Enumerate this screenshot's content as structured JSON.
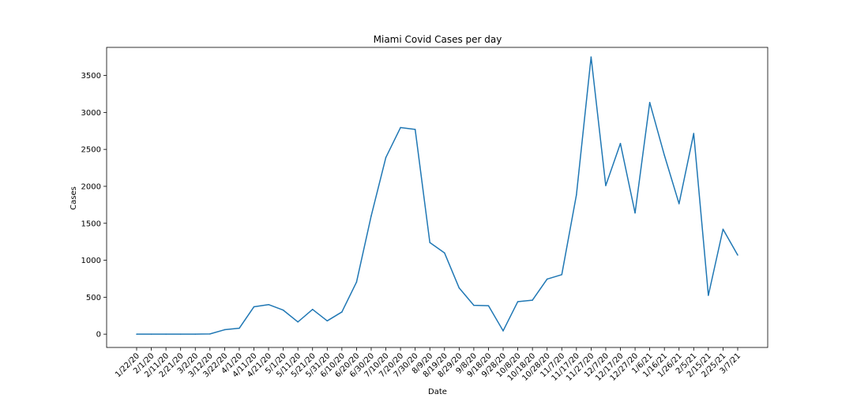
{
  "chart_data": {
    "type": "line",
    "title": "Miami Covid Cases per day",
    "xlabel": "Date",
    "ylabel": "Cases",
    "ylim": [
      -180,
      3880
    ],
    "yticks": [
      0,
      500,
      1000,
      1500,
      2000,
      2500,
      3000,
      3500
    ],
    "grid": false,
    "categories": [
      "1/22/20",
      "2/1/20",
      "2/11/20",
      "2/21/20",
      "3/2/20",
      "3/12/20",
      "3/22/20",
      "4/1/20",
      "4/11/20",
      "4/21/20",
      "5/1/20",
      "5/11/20",
      "5/21/20",
      "5/31/20",
      "6/10/20",
      "6/20/20",
      "6/30/20",
      "7/10/20",
      "7/20/20",
      "7/30/20",
      "8/9/20",
      "8/19/20",
      "8/29/20",
      "9/8/20",
      "9/18/20",
      "9/28/20",
      "10/8/20",
      "10/18/20",
      "10/28/20",
      "11/7/20",
      "11/17/20",
      "11/27/20",
      "12/7/20",
      "12/17/20",
      "12/27/20",
      "1/6/21",
      "1/16/21",
      "1/26/21",
      "2/5/21",
      "2/15/21",
      "2/25/21",
      "3/7/21"
    ],
    "series": [
      {
        "color": "#1f77b4",
        "values": [
          0,
          0,
          0,
          0,
          0,
          3,
          60,
          80,
          370,
          400,
          325,
          165,
          335,
          180,
          300,
          705,
          1600,
          2390,
          2795,
          2770,
          1240,
          1100,
          625,
          390,
          385,
          45,
          440,
          460,
          745,
          805,
          1885,
          3750,
          2010,
          2580,
          1640,
          3135,
          2420,
          1765,
          2715,
          525,
          1420,
          1070
        ]
      }
    ]
  }
}
